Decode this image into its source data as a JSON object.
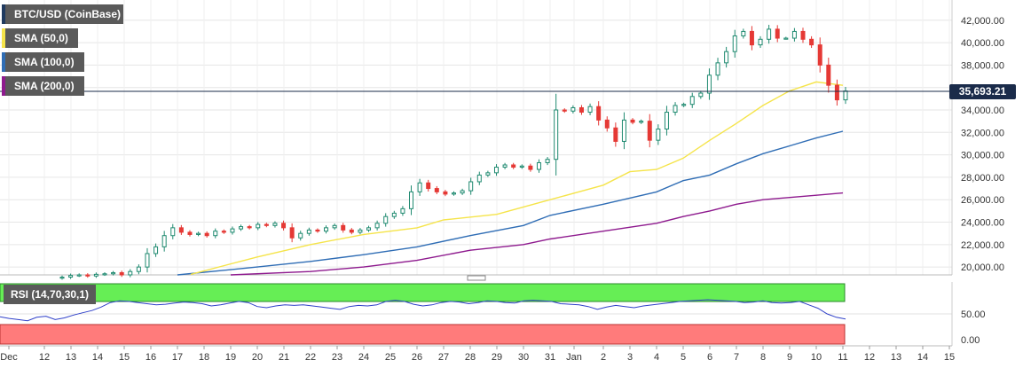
{
  "legends": {
    "instrument": "BTC/USD (CoinBase)",
    "sma50": "SMA (50,0)",
    "sma100": "SMA (100,0)",
    "sma200": "SMA (200,0)",
    "rsi": "RSI (14,70,30,1)"
  },
  "colors": {
    "instrument": "#1f3a5f",
    "sma50": "#f5e44a",
    "sma100": "#2f6db5",
    "sma200": "#8e1a8e",
    "up": "#1f8a70",
    "down": "#e53935",
    "rsi_line": "#2f40c9",
    "overbought": "#66ee55",
    "oversold": "#ff7b7b",
    "current_price_line": "#1a2b4a"
  },
  "current_price": "35,693.21",
  "chart_data": {
    "type": "candlestick",
    "price_axis": {
      "ticks": [
        "42,000.00",
        "40,000.00",
        "38,000.00",
        "36,000.00",
        "34,000.00",
        "32,000.00",
        "30,000.00",
        "28,000.00",
        "26,000.00",
        "24,000.00",
        "22,000.00",
        "20,000.00"
      ],
      "ylim": [
        19300,
        43800
      ]
    },
    "rsi_axis": {
      "ticks": [
        "50.00",
        "0.00"
      ]
    },
    "x_ticks": [
      "Dec",
      "12",
      "13",
      "14",
      "15",
      "16",
      "17",
      "18",
      "19",
      "20",
      "21",
      "22",
      "23",
      "24",
      "25",
      "26",
      "27",
      "28",
      "29",
      "30",
      "31",
      "Jan",
      "2",
      "3",
      "4",
      "5",
      "6",
      "7",
      "8",
      "9",
      "10",
      "11",
      "12",
      "13",
      "14",
      "15"
    ],
    "close_series": [
      19100,
      19250,
      19300,
      19200,
      19350,
      19400,
      19500,
      19300,
      19600,
      20000,
      21200,
      21800,
      22800,
      23500,
      23100,
      22900,
      23000,
      22800,
      23200,
      23100,
      23400,
      23600,
      23500,
      23800,
      23700,
      23900,
      23500,
      22600,
      23000,
      23300,
      23200,
      23500,
      23700,
      23300,
      23100,
      23300,
      23500,
      23900,
      24500,
      24800,
      25200,
      26700,
      27500,
      27000,
      26700,
      26500,
      26600,
      26800,
      27600,
      28200,
      28400,
      28900,
      29100,
      28900,
      29000,
      28700,
      29300,
      29600,
      34000,
      33900,
      34200,
      33800,
      34300,
      33100,
      32400,
      31200,
      33100,
      32900,
      33000,
      31300,
      32300,
      33800,
      34400,
      34500,
      35200,
      35500,
      37100,
      38200,
      39200,
      40600,
      41000,
      39800,
      40300,
      41200,
      40400,
      40400,
      41000,
      40300,
      39800,
      38000,
      36200,
      34900,
      35693
    ],
    "sma50": [
      [
        17.5,
        19350
      ],
      [
        20,
        20900
      ],
      [
        22,
        22000
      ],
      [
        24,
        22900
      ],
      [
        26,
        23500
      ],
      [
        27,
        24200
      ],
      [
        29,
        24700
      ],
      [
        31,
        26000
      ],
      [
        2,
        27300
      ],
      [
        3,
        28500
      ],
      [
        4,
        28700
      ],
      [
        5,
        29700
      ],
      [
        6,
        31300
      ],
      [
        7,
        32800
      ],
      [
        8,
        34400
      ],
      [
        9,
        35700
      ],
      [
        10,
        36500
      ],
      [
        11,
        36200
      ]
    ],
    "sma100": [
      [
        17,
        19300
      ],
      [
        20,
        20000
      ],
      [
        22,
        20500
      ],
      [
        24,
        21100
      ],
      [
        26,
        21800
      ],
      [
        28,
        22800
      ],
      [
        30,
        23700
      ],
      [
        31,
        24600
      ],
      [
        2,
        25600
      ],
      [
        4,
        26700
      ],
      [
        5,
        27700
      ],
      [
        6,
        28200
      ],
      [
        7,
        29200
      ],
      [
        8,
        30100
      ],
      [
        9,
        30800
      ],
      [
        10,
        31500
      ],
      [
        11,
        32100
      ]
    ],
    "sma200": [
      [
        19,
        19300
      ],
      [
        22,
        19600
      ],
      [
        24,
        20000
      ],
      [
        26,
        20600
      ],
      [
        28,
        21500
      ],
      [
        30,
        22000
      ],
      [
        31,
        22500
      ],
      [
        2,
        23200
      ],
      [
        4,
        23900
      ],
      [
        5,
        24500
      ],
      [
        6,
        25000
      ],
      [
        7,
        25600
      ],
      [
        8,
        26000
      ],
      [
        9,
        26200
      ],
      [
        10,
        26400
      ],
      [
        11,
        26600
      ]
    ],
    "rsi": [
      45,
      42,
      40,
      38,
      44,
      46,
      40,
      43,
      48,
      52,
      56,
      62,
      70,
      73,
      72,
      70,
      68,
      66,
      67,
      69,
      71,
      70,
      68,
      64,
      66,
      69,
      72,
      70,
      63,
      61,
      64,
      66,
      65,
      66,
      64,
      62,
      60,
      58,
      63,
      65,
      64,
      66,
      72,
      74,
      72,
      67,
      64,
      66,
      70,
      72,
      71,
      68,
      70,
      73,
      72,
      70,
      69,
      73,
      74,
      73,
      72,
      68,
      67,
      66,
      63,
      58,
      62,
      65,
      63,
      61,
      64,
      66,
      68,
      70,
      72,
      73,
      74,
      75,
      74,
      73,
      72,
      70,
      71,
      73,
      70,
      69,
      70,
      72,
      66,
      60,
      50,
      44,
      41
    ]
  }
}
